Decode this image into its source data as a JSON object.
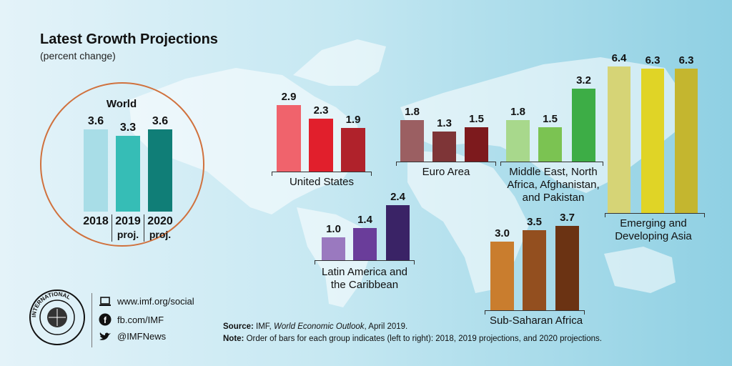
{
  "header": {
    "title": "Latest Growth Projections",
    "subtitle": "(percent change)"
  },
  "footer": {
    "source_label": "Source:",
    "source_pre": "IMF,",
    "source_italic": "World Economic Outlook",
    "source_post": ", April 2019.",
    "note_label": "Note:",
    "note_text": "Order of bars for each group indicates (left to right): 2018, 2019 projections, and 2020 projections."
  },
  "social": {
    "web": "www.imf.org/social",
    "facebook": "fb.com/IMF",
    "twitter": "@IMFNews",
    "web_icon": "laptop-icon",
    "facebook_icon": "facebook-icon",
    "twitter_icon": "twitter-icon"
  },
  "logo": {
    "text": "INTERNATIONAL MONETARY FUND"
  },
  "chart_data": [
    {
      "type": "bar",
      "title": "World",
      "categories": [
        "2018",
        "2019 proj.",
        "2020 proj."
      ],
      "values": [
        3.6,
        3.3,
        3.6
      ],
      "colors": [
        "#a8dde7",
        "#36bdb6",
        "#107e77"
      ]
    },
    {
      "type": "bar",
      "title": "United States",
      "categories": [
        "2018",
        "2019 proj.",
        "2020 proj."
      ],
      "values": [
        2.9,
        2.3,
        1.9
      ],
      "colors": [
        "#f0636c",
        "#e11f2c",
        "#b0222b"
      ]
    },
    {
      "type": "bar",
      "title": "Euro Area",
      "categories": [
        "2018",
        "2019 proj.",
        "2020 proj."
      ],
      "values": [
        1.8,
        1.3,
        1.5
      ],
      "colors": [
        "#9b5f62",
        "#7e3537",
        "#7d1a1d"
      ]
    },
    {
      "type": "bar",
      "title": "Middle East, North Africa, Afghanistan, and Pakistan",
      "categories": [
        "2018",
        "2019 proj.",
        "2020 proj."
      ],
      "values": [
        1.8,
        1.5,
        3.2
      ],
      "colors": [
        "#a8d88c",
        "#7bc352",
        "#3dad46"
      ]
    },
    {
      "type": "bar",
      "title": "Emerging and Developing Asia",
      "categories": [
        "2018",
        "2019 proj.",
        "2020 proj."
      ],
      "values": [
        6.4,
        6.3,
        6.3
      ],
      "colors": [
        "#d6d476",
        "#e0d426",
        "#c4b62f"
      ]
    },
    {
      "type": "bar",
      "title": "Latin America and the Caribbean",
      "categories": [
        "2018",
        "2019 proj.",
        "2020 proj."
      ],
      "values": [
        1.0,
        1.4,
        2.4
      ],
      "colors": [
        "#9a79bf",
        "#6a3d9a",
        "#3a2366"
      ]
    },
    {
      "type": "bar",
      "title": "Sub-Saharan Africa",
      "categories": [
        "2018",
        "2019 proj.",
        "2020 proj."
      ],
      "values": [
        3.0,
        3.5,
        3.7
      ],
      "colors": [
        "#c97d2e",
        "#934f1f",
        "#6b3313"
      ]
    }
  ]
}
